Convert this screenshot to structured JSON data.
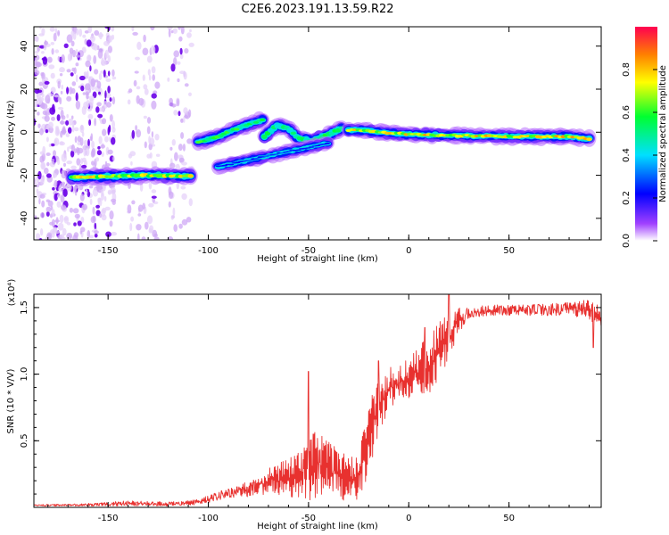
{
  "title": "C2E6.2023.191.13.59.R22",
  "chart_data": [
    {
      "type": "heatmap",
      "xlabel": "Height of straight line (km)",
      "ylabel": "Frequency (Hz)",
      "xlim": [
        -187,
        96
      ],
      "ylim": [
        -50,
        49
      ],
      "xticks": [
        -150,
        -100,
        -50,
        0,
        50
      ],
      "yticks": [
        -40,
        -20,
        0,
        20,
        40
      ],
      "grid": false,
      "colorbar": {
        "label": "Normalized spectral amplitude",
        "range": [
          0,
          1
        ],
        "ticks": [
          "0.0",
          "0.2",
          "0.4",
          "0.6",
          "0.8"
        ]
      },
      "noise_regions": [
        {
          "x": [
            -187,
            -147
          ],
          "y": [
            -50,
            49
          ],
          "density": 1.0
        },
        {
          "x": [
            -140,
            -125
          ],
          "y": [
            -50,
            49
          ],
          "density": 0.45
        },
        {
          "x": [
            -120,
            -108
          ],
          "y": [
            -50,
            49
          ],
          "density": 0.5
        }
      ],
      "ridges": [
        {
          "points": [
            [
              -168,
              -21
            ],
            [
              -150,
              -20.5
            ],
            [
              -130,
              -20
            ],
            [
              -108,
              -20.5
            ]
          ],
          "amplitude": 0.8,
          "thickness": 3.5
        },
        {
          "points": [
            [
              -105,
              -4.5
            ],
            [
              -95,
              -2
            ],
            [
              -85,
              2
            ],
            [
              -77,
              4.5
            ],
            [
              -72,
              6
            ]
          ],
          "amplitude": 0.65,
          "thickness": 3
        },
        {
          "points": [
            [
              -72,
              -2
            ],
            [
              -66,
              3
            ],
            [
              -60,
              2
            ],
            [
              -55,
              -3
            ],
            [
              -48,
              -4
            ],
            [
              -40,
              -1
            ],
            [
              -33,
              2
            ]
          ],
          "amplitude": 0.6,
          "thickness": 4
        },
        {
          "points": [
            [
              -30,
              1
            ],
            [
              -22,
              1
            ],
            [
              -15,
              0
            ],
            [
              0,
              -1
            ],
            [
              20,
              -1.5
            ],
            [
              50,
              -2
            ],
            [
              80,
              -2
            ],
            [
              90,
              -3
            ]
          ],
          "amplitude": 0.85,
          "thickness": 3
        },
        {
          "points": [
            [
              -95,
              -16
            ],
            [
              -80,
              -13
            ],
            [
              -65,
              -10
            ],
            [
              -50,
              -7
            ],
            [
              -40,
              -5
            ]
          ],
          "amplitude": 0.3,
          "thickness": 1.5
        }
      ]
    },
    {
      "type": "line",
      "xlabel": "Height of straight line (km)",
      "ylabel": "SNR (10 * V/V)",
      "y_multiplier": "(x10⁴)",
      "xlim": [
        -187,
        96
      ],
      "ylim": [
        0,
        1.6
      ],
      "xticks": [
        -150,
        -100,
        -50,
        0,
        50
      ],
      "yticks": [
        0.5,
        1.0,
        1.5
      ],
      "ytick_labels": [
        "0.5",
        "1.0",
        "1.5"
      ],
      "grid": false,
      "series": [
        {
          "color": "#e8312f",
          "envelope": [
            [
              -187,
              0.01,
              0.02
            ],
            [
              -160,
              0.01,
              0.03
            ],
            [
              -140,
              0.01,
              0.05
            ],
            [
              -120,
              0.01,
              0.04
            ],
            [
              -105,
              0.02,
              0.06
            ],
            [
              -95,
              0.05,
              0.12
            ],
            [
              -85,
              0.08,
              0.16
            ],
            [
              -78,
              0.08,
              0.22
            ],
            [
              -70,
              0.1,
              0.3
            ],
            [
              -62,
              0.08,
              0.35
            ],
            [
              -55,
              0.05,
              0.42
            ],
            [
              -50,
              0.05,
              0.55
            ],
            [
              -45,
              0.05,
              0.6
            ],
            [
              -40,
              0.05,
              0.52
            ],
            [
              -35,
              0.05,
              0.45
            ],
            [
              -30,
              0.05,
              0.4
            ],
            [
              -25,
              0.03,
              0.38
            ],
            [
              -20,
              0.25,
              0.8
            ],
            [
              -15,
              0.55,
              0.95
            ],
            [
              -10,
              0.72,
              1.05
            ],
            [
              -5,
              0.75,
              1.1
            ],
            [
              0,
              0.82,
              1.12
            ],
            [
              5,
              0.85,
              1.2
            ],
            [
              10,
              0.85,
              1.3
            ],
            [
              15,
              0.95,
              1.4
            ],
            [
              20,
              1.1,
              1.45
            ],
            [
              25,
              1.3,
              1.5
            ],
            [
              30,
              1.42,
              1.5
            ],
            [
              40,
              1.44,
              1.52
            ],
            [
              60,
              1.44,
              1.52
            ],
            [
              80,
              1.44,
              1.54
            ],
            [
              90,
              1.4,
              1.56
            ],
            [
              96,
              1.35,
              1.5
            ]
          ],
          "spikes": [
            [
              -50,
              1.02
            ],
            [
              20,
              1.6
            ],
            [
              -15,
              1.1
            ],
            [
              8,
              1.35
            ],
            [
              92,
              1.2
            ]
          ]
        }
      ]
    }
  ]
}
